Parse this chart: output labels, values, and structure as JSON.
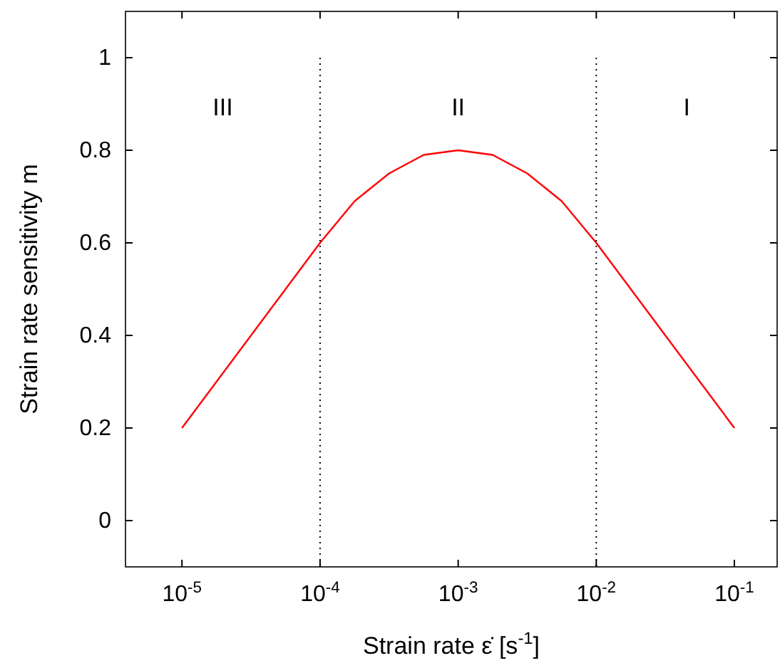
{
  "chart_data": {
    "type": "line",
    "xlabel": "Strain rate ε̇ [s$^{-1}$]",
    "ylabel": "Strain rate sensitivity m",
    "log": "x",
    "x": [
      1e-05,
      0.0001,
      0.0001778,
      0.0003162,
      0.0005623,
      0.001,
      0.001778,
      0.003162,
      0.005623,
      0.01,
      0.1
    ],
    "series": [
      {
        "color": "#ff0000",
        "values": [
          0.2,
          0.6,
          0.69,
          0.75,
          0.79,
          0.8,
          0.79,
          0.75,
          0.69,
          0.6,
          0.2
        ]
      }
    ],
    "xlim": [
      3.9e-06,
      0.204
    ],
    "ylim": [
      -0.1,
      1.1
    ],
    "xticks": [
      {
        "value": 1e-05,
        "label": "10$^{-5}$"
      },
      {
        "value": 0.0001,
        "label": "10$^{-4}$"
      },
      {
        "value": 0.001,
        "label": "10$^{-3}$"
      },
      {
        "value": 0.01,
        "label": "10$^{-2}$"
      },
      {
        "value": 0.1,
        "label": "10$^{-1}$"
      }
    ],
    "yticks": [
      0,
      0.2,
      0.4,
      0.6,
      0.8,
      1
    ],
    "ref_lines": [
      {
        "axis": "x",
        "value": 0.0001,
        "line_style": "dotted",
        "color": "#000000"
      },
      {
        "axis": "x",
        "value": 0.01,
        "line_style": "dotted",
        "color": "#000000"
      }
    ],
    "annotations": [
      "III",
      "II",
      "I"
    ],
    "grid": false,
    "marker": "none",
    "line_style": "solid"
  }
}
